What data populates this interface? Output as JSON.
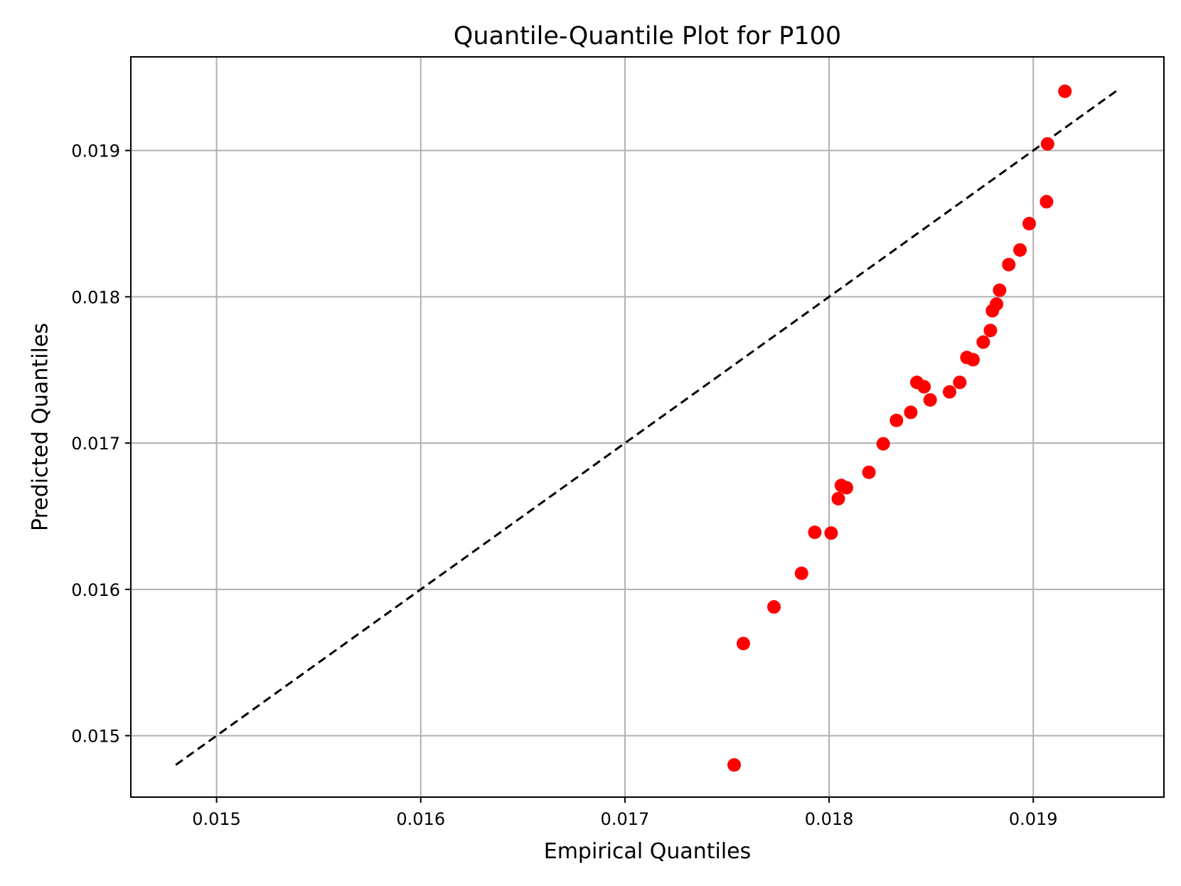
{
  "chart_data": {
    "type": "scatter",
    "title": "Quantile-Quantile Plot for P100",
    "xlabel": "Empirical Quantiles",
    "ylabel": "Predicted Quantiles",
    "xlim": [
      0.01458,
      0.01964
    ],
    "ylim": [
      0.01458,
      0.01964
    ],
    "xticks": [
      0.015,
      0.016,
      0.017,
      0.018,
      0.019
    ],
    "xtick_labels": [
      "0.015",
      "0.016",
      "0.017",
      "0.018",
      "0.019"
    ],
    "yticks": [
      0.015,
      0.016,
      0.017,
      0.018,
      0.019
    ],
    "ytick_labels": [
      "0.015",
      "0.016",
      "0.017",
      "0.018",
      "0.019"
    ],
    "grid": true,
    "reference_line": {
      "style": "dashed",
      "color": "#000000",
      "x": [
        0.0148,
        0.01942
      ],
      "y": [
        0.0148,
        0.01942
      ]
    },
    "point_color": "#ff0000",
    "points": [
      {
        "x": 0.017535,
        "y": 0.0148
      },
      {
        "x": 0.01758,
        "y": 0.01563
      },
      {
        "x": 0.01773,
        "y": 0.01588
      },
      {
        "x": 0.017865,
        "y": 0.01611
      },
      {
        "x": 0.01793,
        "y": 0.01639
      },
      {
        "x": 0.01801,
        "y": 0.016385
      },
      {
        "x": 0.018045,
        "y": 0.01662
      },
      {
        "x": 0.01806,
        "y": 0.01671
      },
      {
        "x": 0.018085,
        "y": 0.016695
      },
      {
        "x": 0.018195,
        "y": 0.0168
      },
      {
        "x": 0.018265,
        "y": 0.016995
      },
      {
        "x": 0.01833,
        "y": 0.017155
      },
      {
        "x": 0.0184,
        "y": 0.01721
      },
      {
        "x": 0.01843,
        "y": 0.017415
      },
      {
        "x": 0.018465,
        "y": 0.017385
      },
      {
        "x": 0.018495,
        "y": 0.017295
      },
      {
        "x": 0.01859,
        "y": 0.01735
      },
      {
        "x": 0.01864,
        "y": 0.017415
      },
      {
        "x": 0.018675,
        "y": 0.017585
      },
      {
        "x": 0.018705,
        "y": 0.01757
      },
      {
        "x": 0.018755,
        "y": 0.01769
      },
      {
        "x": 0.01879,
        "y": 0.01777
      },
      {
        "x": 0.0188,
        "y": 0.017905
      },
      {
        "x": 0.01882,
        "y": 0.01795
      },
      {
        "x": 0.018835,
        "y": 0.018045
      },
      {
        "x": 0.01888,
        "y": 0.01822
      },
      {
        "x": 0.018935,
        "y": 0.01832
      },
      {
        "x": 0.01898,
        "y": 0.0185
      },
      {
        "x": 0.019065,
        "y": 0.01865
      },
      {
        "x": 0.01907,
        "y": 0.019045
      },
      {
        "x": 0.019155,
        "y": 0.019405
      }
    ]
  }
}
